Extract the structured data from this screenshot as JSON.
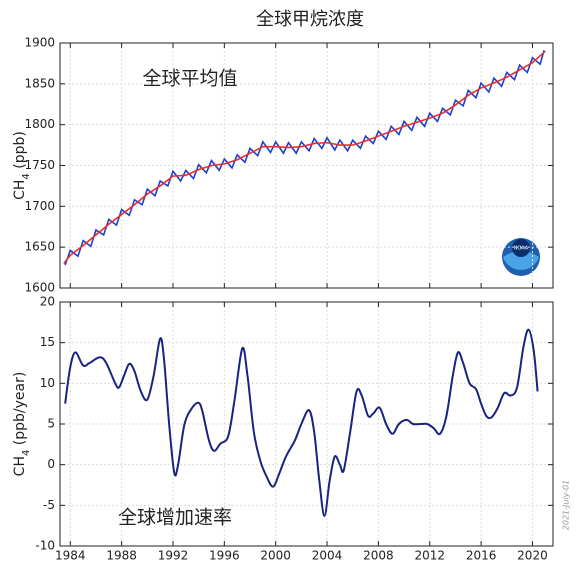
{
  "chart_data": [
    {
      "type": "line",
      "title": "全球甲烷浓度",
      "annotation": "全球平均值",
      "logo_text": "NOAA",
      "ylabel_parts": [
        "CH",
        "4",
        " (ppb)"
      ],
      "xlim": [
        1983.2,
        2021.6
      ],
      "ylim": [
        1600,
        1900
      ],
      "yticks": [
        1600,
        1650,
        1700,
        1750,
        1800,
        1850,
        1900
      ],
      "grid": true,
      "series": [
        {
          "color": "#1f3fd0",
          "x": [
            1983.6,
            1984.0,
            1984.6,
            1985.0,
            1985.6,
            1986.0,
            1986.6,
            1987.0,
            1987.6,
            1988.0,
            1988.6,
            1989.0,
            1989.6,
            1990.0,
            1990.6,
            1991.0,
            1991.6,
            1992.0,
            1992.6,
            1993.0,
            1993.6,
            1994.0,
            1994.6,
            1995.0,
            1995.6,
            1996.0,
            1996.6,
            1997.0,
            1997.6,
            1998.0,
            1998.6,
            1999.0,
            1999.6,
            2000.0,
            2000.6,
            2001.0,
            2001.6,
            2002.0,
            2002.6,
            2003.0,
            2003.6,
            2004.0,
            2004.6,
            2005.0,
            2005.6,
            2006.0,
            2006.6,
            2007.0,
            2007.6,
            2008.0,
            2008.6,
            2009.0,
            2009.6,
            2010.0,
            2010.6,
            2011.0,
            2011.6,
            2012.0,
            2012.6,
            2013.0,
            2013.6,
            2014.0,
            2014.6,
            2015.0,
            2015.6,
            2016.0,
            2016.6,
            2017.0,
            2017.6,
            2018.0,
            2018.6,
            2019.0,
            2019.6,
            2020.0,
            2020.6,
            2020.9
          ],
          "values": [
            1628,
            1646,
            1639,
            1658,
            1651,
            1671,
            1665,
            1684,
            1677,
            1696,
            1689,
            1708,
            1702,
            1721,
            1713,
            1731,
            1725,
            1743,
            1731,
            1744,
            1734,
            1751,
            1741,
            1756,
            1744,
            1758,
            1747,
            1763,
            1754,
            1771,
            1762,
            1779,
            1766,
            1779,
            1765,
            1778,
            1765,
            1779,
            1768,
            1783,
            1771,
            1784,
            1769,
            1781,
            1768,
            1781,
            1771,
            1786,
            1777,
            1792,
            1782,
            1798,
            1788,
            1804,
            1793,
            1809,
            1798,
            1814,
            1804,
            1820,
            1812,
            1830,
            1823,
            1842,
            1833,
            1851,
            1840,
            1857,
            1847,
            1864,
            1855,
            1873,
            1864,
            1882,
            1874,
            1891
          ]
        },
        {
          "color": "#e8302a",
          "x": [
            1983.5,
            1984,
            1985,
            1986,
            1987,
            1988,
            1989,
            1990,
            1991,
            1992,
            1993,
            1994,
            1995,
            1996,
            1997,
            1998,
            1999,
            2000,
            2001,
            2002,
            2003,
            2004,
            2005,
            2006,
            2007,
            2008,
            2009,
            2010,
            2011,
            2012,
            2013,
            2014,
            2015,
            2016,
            2017,
            2018,
            2019,
            2020,
            2021
          ],
          "values": [
            1630,
            1640,
            1652,
            1665,
            1678,
            1690,
            1702,
            1715,
            1725,
            1737,
            1738,
            1745,
            1750,
            1752,
            1757,
            1765,
            1773,
            1773,
            1772,
            1773,
            1777,
            1778,
            1775,
            1775,
            1780,
            1786,
            1792,
            1798,
            1803,
            1808,
            1814,
            1824,
            1836,
            1845,
            1851,
            1858,
            1867,
            1876,
            1890
          ]
        }
      ]
    },
    {
      "type": "line",
      "annotation": "全球增加速率",
      "side_note": "2021-July-01",
      "ylabel_parts": [
        "CH",
        "4",
        " (ppb/year)"
      ],
      "xlim": [
        1983.2,
        2021.6
      ],
      "xticks": [
        1984,
        1988,
        1992,
        1996,
        2000,
        2004,
        2008,
        2012,
        2016,
        2020
      ],
      "ylim": [
        -10,
        20
      ],
      "yticks": [
        -10,
        -5,
        0,
        5,
        10,
        15,
        20
      ],
      "grid": true,
      "series": [
        {
          "color": "#1a237e",
          "x": [
            1983.6,
            1984.0,
            1984.4,
            1985.0,
            1985.5,
            1986.3,
            1986.8,
            1987.5,
            1987.8,
            1988.2,
            1988.6,
            1989.0,
            1989.5,
            1990.0,
            1990.5,
            1991.0,
            1991.3,
            1991.7,
            1992.1,
            1992.4,
            1992.9,
            1993.5,
            1994.0,
            1994.3,
            1994.8,
            1995.2,
            1995.7,
            1996.3,
            1996.8,
            1997.4,
            1997.8,
            1998.3,
            1998.8,
            1999.3,
            1999.8,
            2000.3,
            2000.8,
            2001.5,
            2002.0,
            2002.6,
            2003.0,
            2003.4,
            2003.8,
            2004.2,
            2004.6,
            2005.0,
            2005.3,
            2005.8,
            2006.3,
            2006.7,
            2007.2,
            2007.6,
            2008.1,
            2008.6,
            2009.1,
            2009.6,
            2010.2,
            2010.7,
            2011.3,
            2011.8,
            2012.3,
            2012.8,
            2013.3,
            2013.8,
            2014.2,
            2014.6,
            2015.1,
            2015.6,
            2016.0,
            2016.4,
            2016.8,
            2017.3,
            2017.8,
            2018.3,
            2018.8,
            2019.3,
            2019.7,
            2020.1,
            2020.4
          ],
          "values": [
            7.5,
            12,
            13.8,
            12.2,
            12.5,
            13.2,
            12.5,
            10,
            9.5,
            11,
            12.4,
            11.5,
            9,
            8,
            11,
            15.5,
            13,
            5,
            -1,
            0,
            5,
            7,
            7.6,
            6.5,
            3,
            1.7,
            2.6,
            3.5,
            8,
            14.3,
            11,
            4,
            0.5,
            -1.5,
            -2.7,
            -1,
            1,
            3,
            5,
            6.7,
            4,
            -2,
            -6.3,
            -2,
            1,
            0,
            -0.7,
            4,
            9,
            8.5,
            6,
            6.3,
            7,
            5,
            3.8,
            5,
            5.5,
            5,
            5,
            5,
            4.5,
            3.8,
            6,
            11,
            13.8,
            12.5,
            10,
            9.3,
            7.5,
            6,
            5.8,
            7,
            8.8,
            8.5,
            9.5,
            14.5,
            16.6,
            14,
            9
          ]
        }
      ]
    }
  ]
}
